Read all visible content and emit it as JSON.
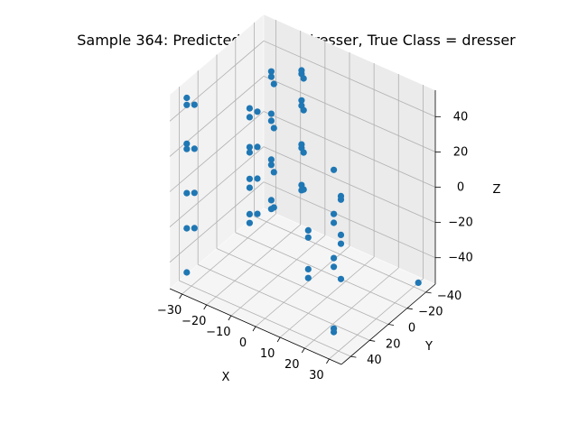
{
  "chart_data": {
    "type": "scatter",
    "projection": "3d",
    "title": "Sample 364: Predicted Class = dresser, True Class = dresser",
    "xlabel": "X",
    "ylabel": "Y",
    "zlabel": "Z",
    "xlim": [
      -35,
      35
    ],
    "ylim": [
      -50,
      50
    ],
    "zlim": [
      -55,
      55
    ],
    "xticks": [
      -30,
      -20,
      -10,
      0,
      10,
      20,
      30
    ],
    "yticks": [
      -40,
      -20,
      0,
      20,
      40
    ],
    "zticks": [
      -40,
      -20,
      0,
      20,
      40
    ],
    "grid": true,
    "marker_color": "#1f77b4",
    "series": [
      {
        "points": [
          [
            -30,
            -45,
            -50
          ],
          [
            -30,
            -45,
            -45
          ],
          [
            -30,
            -45,
            -25
          ],
          [
            -30,
            -45,
            -22
          ],
          [
            -30,
            -45,
            0
          ],
          [
            -30,
            -45,
            4
          ],
          [
            -30,
            -45,
            25
          ],
          [
            -30,
            -45,
            28
          ],
          [
            -27,
            -40,
            -45
          ],
          [
            -27,
            -40,
            -25
          ],
          [
            -27,
            -40,
            0
          ],
          [
            -27,
            -40,
            25
          ],
          [
            -30,
            45,
            -45
          ],
          [
            -30,
            45,
            -20
          ],
          [
            -30,
            45,
            0
          ],
          [
            -30,
            45,
            25
          ],
          [
            -30,
            45,
            28
          ],
          [
            -30,
            45,
            50
          ],
          [
            -30,
            45,
            54
          ],
          [
            -28,
            42,
            -20
          ],
          [
            -28,
            42,
            0
          ],
          [
            -28,
            42,
            25
          ],
          [
            -28,
            42,
            50
          ],
          [
            -10,
            -25,
            -18
          ],
          [
            -10,
            -25,
            -15
          ],
          [
            -10,
            -25,
            6
          ],
          [
            -10,
            -25,
            8
          ],
          [
            -10,
            -25,
            30
          ],
          [
            -10,
            -25,
            33
          ],
          [
            -10,
            -25,
            48
          ],
          [
            -10,
            -25,
            50
          ],
          [
            -8,
            -22,
            -15
          ],
          [
            -8,
            -22,
            6
          ],
          [
            -8,
            -22,
            30
          ],
          [
            -8,
            -22,
            48
          ],
          [
            -12,
            25,
            -15
          ],
          [
            -12,
            25,
            -10
          ],
          [
            -12,
            25,
            5
          ],
          [
            -12,
            25,
            10
          ],
          [
            -12,
            25,
            25
          ],
          [
            -12,
            25,
            28
          ],
          [
            -12,
            25,
            45
          ],
          [
            -12,
            25,
            50
          ],
          [
            -10,
            22,
            -10
          ],
          [
            -10,
            22,
            10
          ],
          [
            -10,
            22,
            28
          ],
          [
            -10,
            22,
            48
          ],
          [
            8,
            -20,
            -55
          ],
          [
            8,
            -20,
            -35
          ],
          [
            8,
            -20,
            -30
          ],
          [
            8,
            -20,
            -10
          ],
          [
            8,
            -20,
            -8
          ],
          [
            10,
            20,
            -35
          ],
          [
            10,
            20,
            -30
          ],
          [
            10,
            20,
            -12
          ],
          [
            10,
            20,
            -8
          ],
          [
            30,
            -45,
            -55
          ],
          [
            30,
            45,
            50
          ],
          [
            30,
            45,
            25
          ],
          [
            30,
            45,
            20
          ],
          [
            30,
            45,
            0
          ],
          [
            30,
            45,
            -5
          ],
          [
            30,
            45,
            -40
          ],
          [
            30,
            45,
            -42
          ]
        ]
      }
    ]
  }
}
